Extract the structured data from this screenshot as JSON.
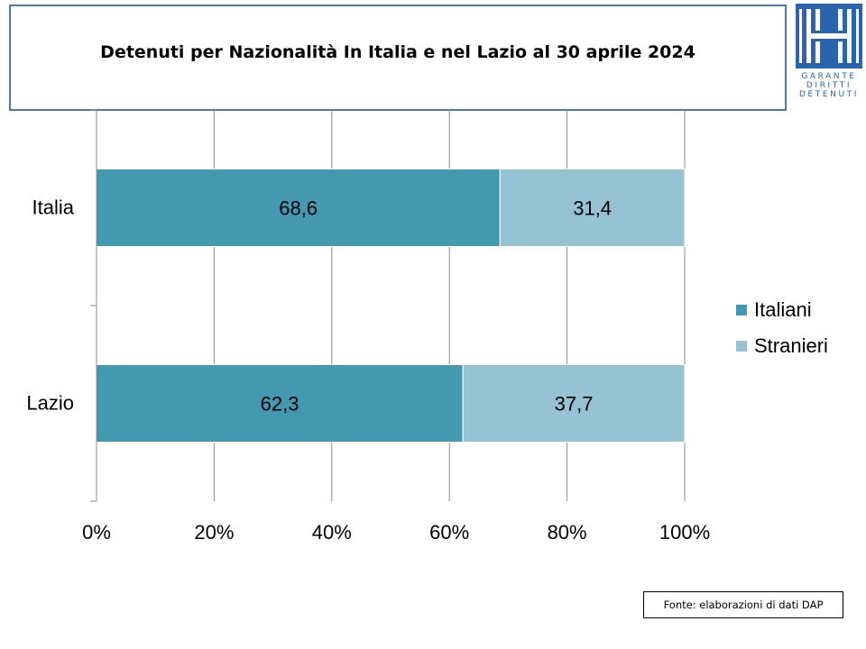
{
  "title": "Detenuti per Nazionalità In Italia e nel Lazio al 30 aprile 2024",
  "logo": {
    "icon": "garante-logo-icon",
    "lines": [
      "GARANTE",
      "DIRITTI",
      "DETENUTI"
    ],
    "color": "#2a64ad"
  },
  "source": "Fonte: elaborazioni di dati DAP",
  "chart_data": {
    "type": "bar",
    "orientation": "horizontal",
    "stacked": "percent",
    "title": "Detenuti per Nazionalità In Italia e nel Lazio al 30 aprile 2024",
    "categories": [
      "Italia",
      "Lazio"
    ],
    "series": [
      {
        "name": "Italiani",
        "values": [
          68.6,
          62.3
        ],
        "labels": [
          "68,6",
          "62,3"
        ],
        "color": "#4399b0"
      },
      {
        "name": "Stranieri",
        "values": [
          31.4,
          37.7
        ],
        "labels": [
          "31,4",
          "37,7"
        ],
        "color": "#95c3d4"
      }
    ],
    "xlim": [
      0,
      100
    ],
    "xticks": [
      "0%",
      "20%",
      "40%",
      "60%",
      "80%",
      "100%"
    ],
    "grid": true,
    "legend": "right"
  }
}
